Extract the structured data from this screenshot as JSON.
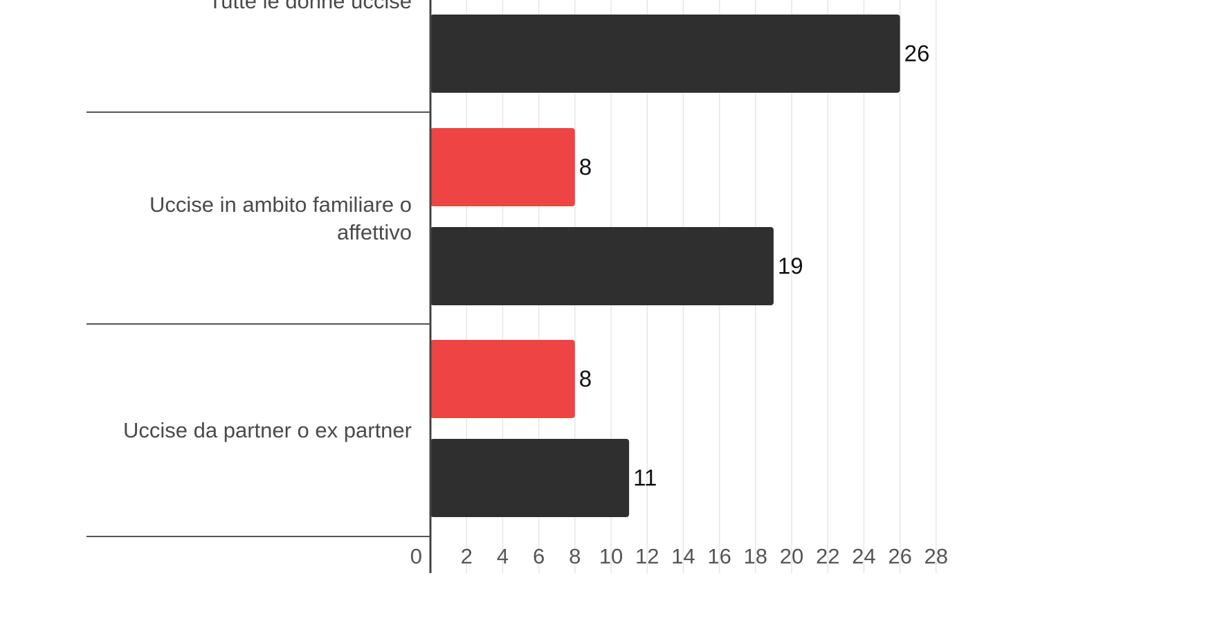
{
  "chart_data": {
    "type": "bar",
    "orientation": "horizontal",
    "categories": [
      "Tutte le donne uccise",
      "Uccise in ambito familiare o affettivo",
      "Uccise da partner o ex partner"
    ],
    "series": [
      {
        "color": "#ef4444",
        "values": [
          null,
          8,
          8
        ]
      },
      {
        "color": "#2f2f2f",
        "values": [
          26,
          19,
          11
        ]
      }
    ],
    "xlim": [
      0,
      28
    ],
    "xticks": [
      0,
      2,
      4,
      6,
      8,
      10,
      12,
      14,
      16,
      18,
      20,
      22,
      24,
      26,
      28
    ],
    "grid": true,
    "legend": "none"
  }
}
